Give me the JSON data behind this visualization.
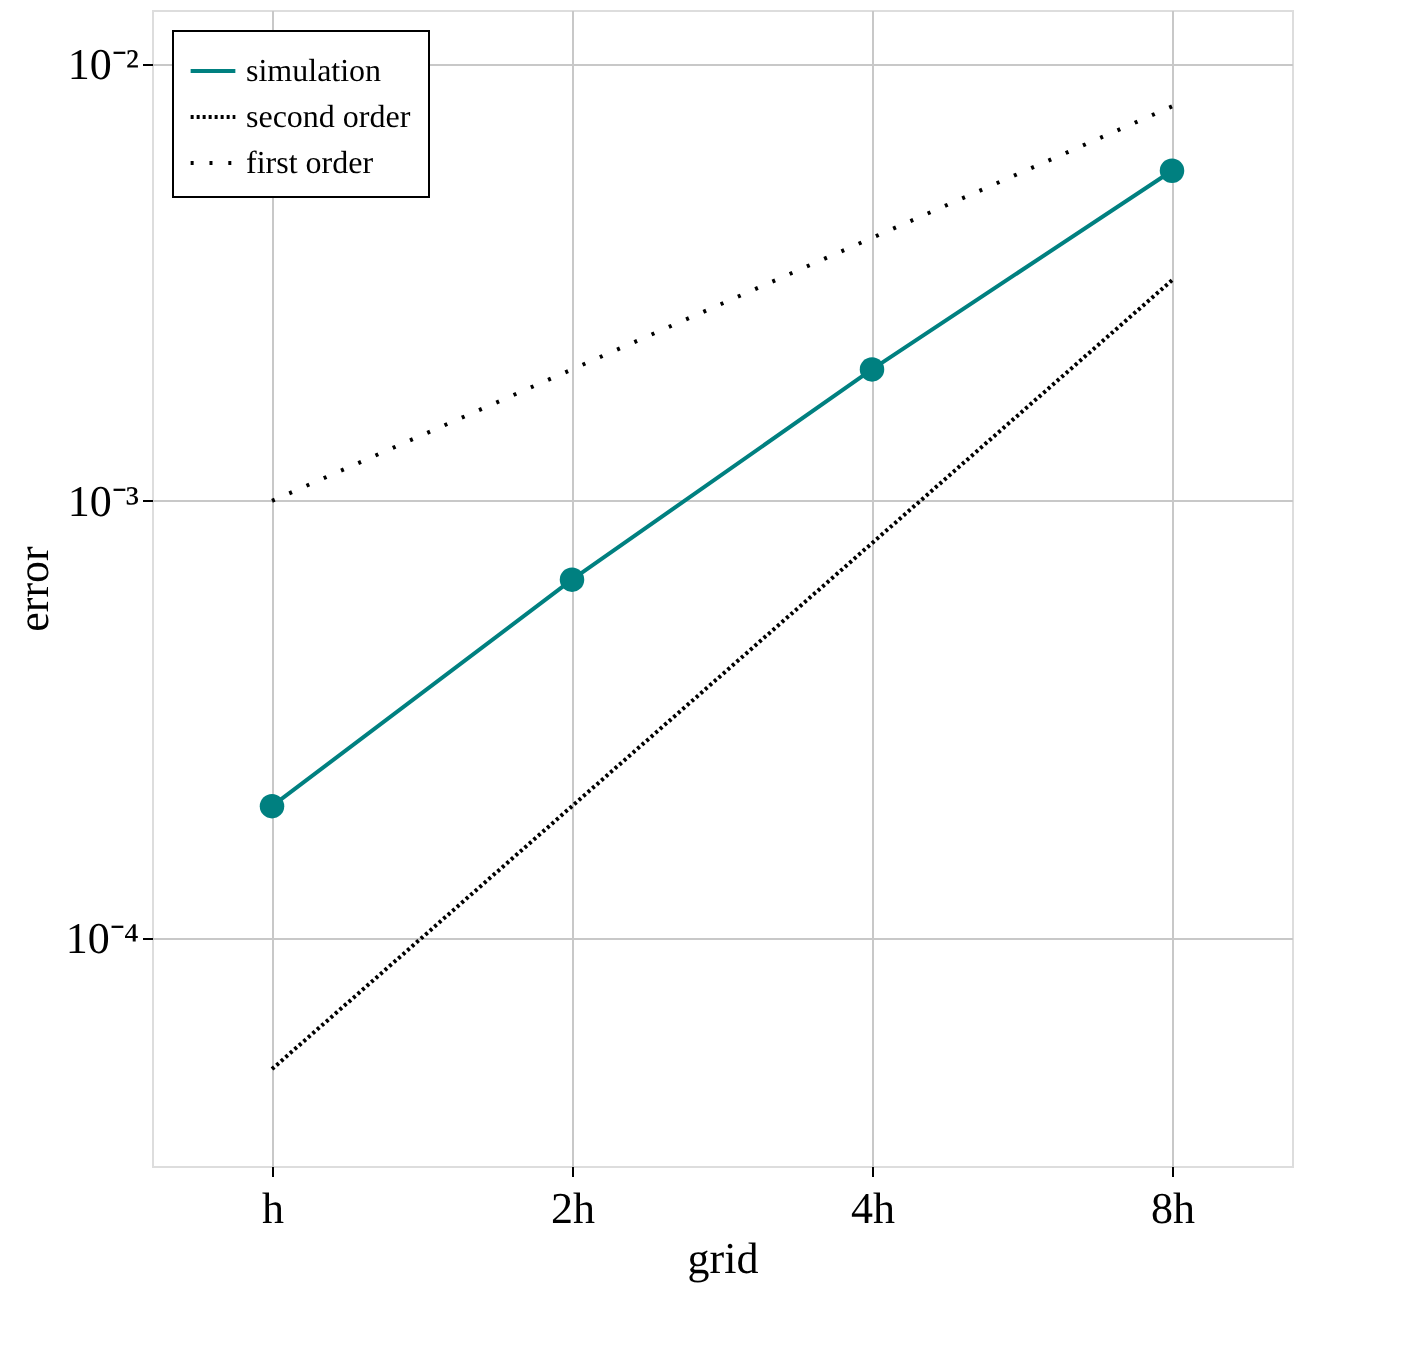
{
  "chart_data": {
    "type": "line",
    "xlabel": "grid",
    "ylabel": "error",
    "categories": [
      "h",
      "2h",
      "4h",
      "8h"
    ],
    "series": [
      {
        "name": "simulation",
        "color": "#008080",
        "values": [
          0.0002,
          0.00066,
          0.002,
          0.0057
        ],
        "marker": "circle",
        "line_style": "solid"
      },
      {
        "name": "second order",
        "color": "#000000",
        "values": [
          5e-05,
          0.0002,
          0.0008,
          0.0032
        ],
        "marker": "none",
        "line_style": "dotted"
      },
      {
        "name": "first order",
        "color": "#000000",
        "values": [
          0.001,
          0.002,
          0.004,
          0.008
        ],
        "marker": "none",
        "line_style": "dashed"
      }
    ],
    "log": true,
    "ylim": [
      3e-05,
      0.0133
    ],
    "yticks": [
      {
        "value": 0.0001,
        "label": "10⁻⁴"
      },
      {
        "value": 0.001,
        "label": "10⁻³"
      },
      {
        "value": 0.01,
        "label": "10⁻²"
      }
    ],
    "grid": true,
    "legend": "top left"
  }
}
